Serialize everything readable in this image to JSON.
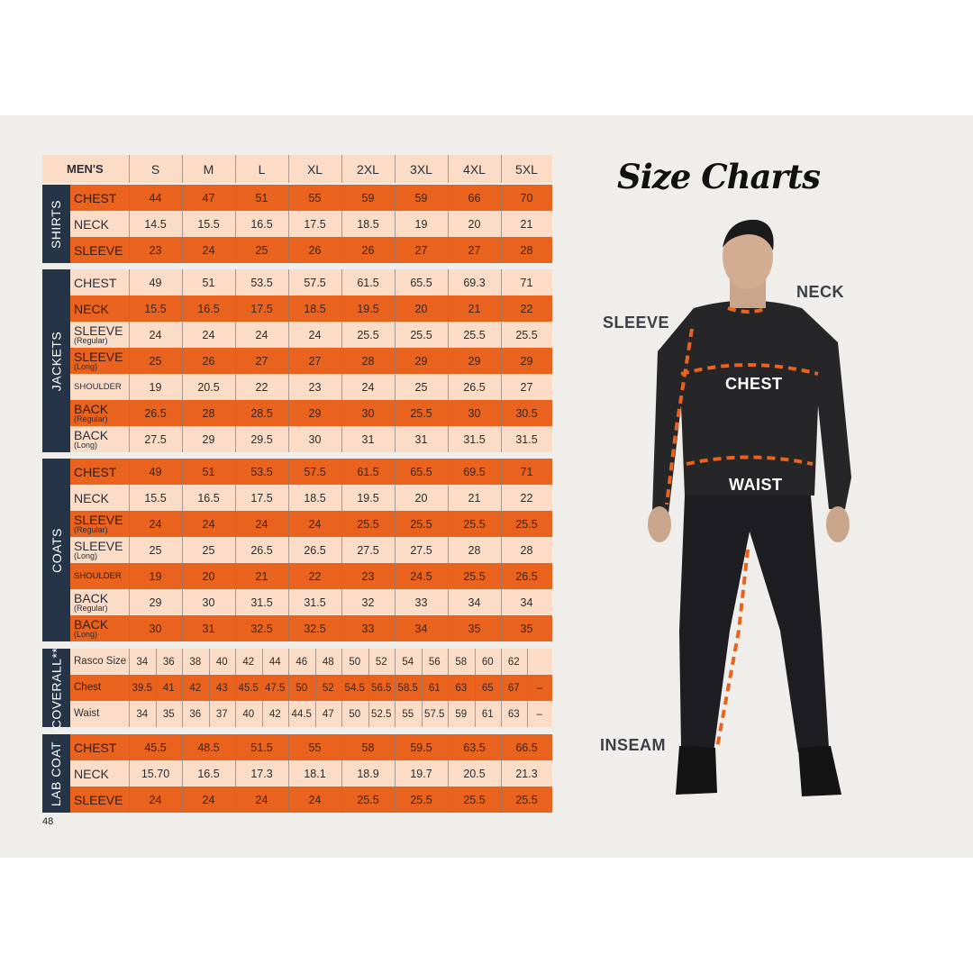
{
  "page_number": "48",
  "title": "Size Charts",
  "colors": {
    "orange": "#e9631e",
    "peach": "#fbdcc6",
    "tab": "#253447"
  },
  "table": {
    "header": {
      "title": "MEN'S",
      "sizes": [
        "S",
        "M",
        "L",
        "XL",
        "2XL",
        "3XL",
        "4XL",
        "5XL"
      ]
    },
    "sections": [
      {
        "name": "SHIRTS",
        "rows": [
          {
            "label": "CHEST",
            "color": "orange",
            "values": [
              "44",
              "47",
              "51",
              "55",
              "59",
              "59",
              "66",
              "70"
            ]
          },
          {
            "label": "NECK",
            "color": "peach",
            "values": [
              "14.5",
              "15.5",
              "16.5",
              "17.5",
              "18.5",
              "19",
              "20",
              "21"
            ]
          },
          {
            "label": "SLEEVE",
            "color": "orange",
            "values": [
              "23",
              "24",
              "25",
              "26",
              "26",
              "27",
              "27",
              "28"
            ]
          }
        ]
      },
      {
        "name": "JACKETS",
        "rows": [
          {
            "label": "CHEST",
            "color": "peach",
            "values": [
              "49",
              "51",
              "53.5",
              "57.5",
              "61.5",
              "65.5",
              "69.3",
              "71"
            ]
          },
          {
            "label": "NECK",
            "color": "orange",
            "values": [
              "15.5",
              "16.5",
              "17.5",
              "18.5",
              "19.5",
              "20",
              "21",
              "22"
            ]
          },
          {
            "label": "SLEEVE",
            "sub": "(Regular)",
            "color": "peach",
            "values": [
              "24",
              "24",
              "24",
              "24",
              "25.5",
              "25.5",
              "25.5",
              "25.5"
            ]
          },
          {
            "label": "SLEEVE",
            "sub": "(Long)",
            "color": "orange",
            "values": [
              "25",
              "26",
              "27",
              "27",
              "28",
              "29",
              "29",
              "29"
            ]
          },
          {
            "label": "SHOULDER",
            "small": true,
            "color": "peach",
            "values": [
              "19",
              "20.5",
              "22",
              "23",
              "24",
              "25",
              "26.5",
              "27"
            ]
          },
          {
            "label": "BACK",
            "sub": "(Regular)",
            "color": "orange",
            "values": [
              "26.5",
              "28",
              "28.5",
              "29",
              "30",
              "25.5",
              "30",
              "30.5"
            ]
          },
          {
            "label": "BACK",
            "sub": "(Long)",
            "color": "peach",
            "values": [
              "27.5",
              "29",
              "29.5",
              "30",
              "31",
              "31",
              "31.5",
              "31.5"
            ]
          }
        ]
      },
      {
        "name": "COATS",
        "rows": [
          {
            "label": "CHEST",
            "color": "orange",
            "values": [
              "49",
              "51",
              "53.5",
              "57.5",
              "61.5",
              "65.5",
              "69.5",
              "71"
            ]
          },
          {
            "label": "NECK",
            "color": "peach",
            "values": [
              "15.5",
              "16.5",
              "17.5",
              "18.5",
              "19.5",
              "20",
              "21",
              "22"
            ]
          },
          {
            "label": "SLEEVE",
            "sub": "(Regular)",
            "color": "orange",
            "values": [
              "24",
              "24",
              "24",
              "24",
              "25.5",
              "25.5",
              "25.5",
              "25.5"
            ]
          },
          {
            "label": "SLEEVE",
            "sub": "(Long)",
            "color": "peach",
            "values": [
              "25",
              "25",
              "26.5",
              "26.5",
              "27.5",
              "27.5",
              "28",
              "28"
            ]
          },
          {
            "label": "SHOULDER",
            "small": true,
            "color": "orange",
            "values": [
              "19",
              "20",
              "21",
              "22",
              "23",
              "24.5",
              "25.5",
              "26.5"
            ]
          },
          {
            "label": "BACK",
            "sub": "(Regular)",
            "color": "peach",
            "values": [
              "29",
              "30",
              "31.5",
              "31.5",
              "32",
              "33",
              "34",
              "34"
            ]
          },
          {
            "label": "BACK",
            "sub": "(Long)",
            "color": "orange",
            "values": [
              "30",
              "31",
              "32.5",
              "32.5",
              "33",
              "34",
              "35",
              "35"
            ]
          }
        ]
      },
      {
        "name": "COVERALL**",
        "split": true,
        "rows": [
          {
            "label": "Rasco Size",
            "mixed": true,
            "color": "peach",
            "values": [
              "34",
              "36",
              "38",
              "40",
              "42",
              "44",
              "46",
              "48",
              "50",
              "52",
              "54",
              "56",
              "58",
              "60",
              "62",
              ""
            ]
          },
          {
            "label": "Chest",
            "mixed": true,
            "color": "orange",
            "values": [
              "39.5",
              "41",
              "42",
              "43",
              "45.5",
              "47.5",
              "50",
              "52",
              "54.5",
              "56.5",
              "58.5",
              "61",
              "63",
              "65",
              "67",
              "–"
            ]
          },
          {
            "label": "Waist",
            "mixed": true,
            "color": "peach",
            "values": [
              "34",
              "35",
              "36",
              "37",
              "40",
              "42",
              "44.5",
              "47",
              "50",
              "52.5",
              "55",
              "57.5",
              "59",
              "61",
              "63",
              "–"
            ]
          }
        ]
      },
      {
        "name": "LAB COAT",
        "rows": [
          {
            "label": "CHEST",
            "color": "orange",
            "values": [
              "45.5",
              "48.5",
              "51.5",
              "55",
              "58",
              "59.5",
              "63.5",
              "66.5"
            ]
          },
          {
            "label": "NECK",
            "color": "peach",
            "values": [
              "15.70",
              "16.5",
              "17.3",
              "18.1",
              "18.9",
              "19.7",
              "20.5",
              "21.3"
            ]
          },
          {
            "label": "SLEEVE",
            "color": "orange",
            "values": [
              "24",
              "24",
              "24",
              "24",
              "25.5",
              "25.5",
              "25.5",
              "25.5"
            ]
          }
        ]
      }
    ]
  },
  "figure": {
    "labels": {
      "neck": "NECK",
      "sleeve": "SLEEVE",
      "chest": "CHEST",
      "waist": "WAIST",
      "inseam": "INSEAM"
    }
  }
}
